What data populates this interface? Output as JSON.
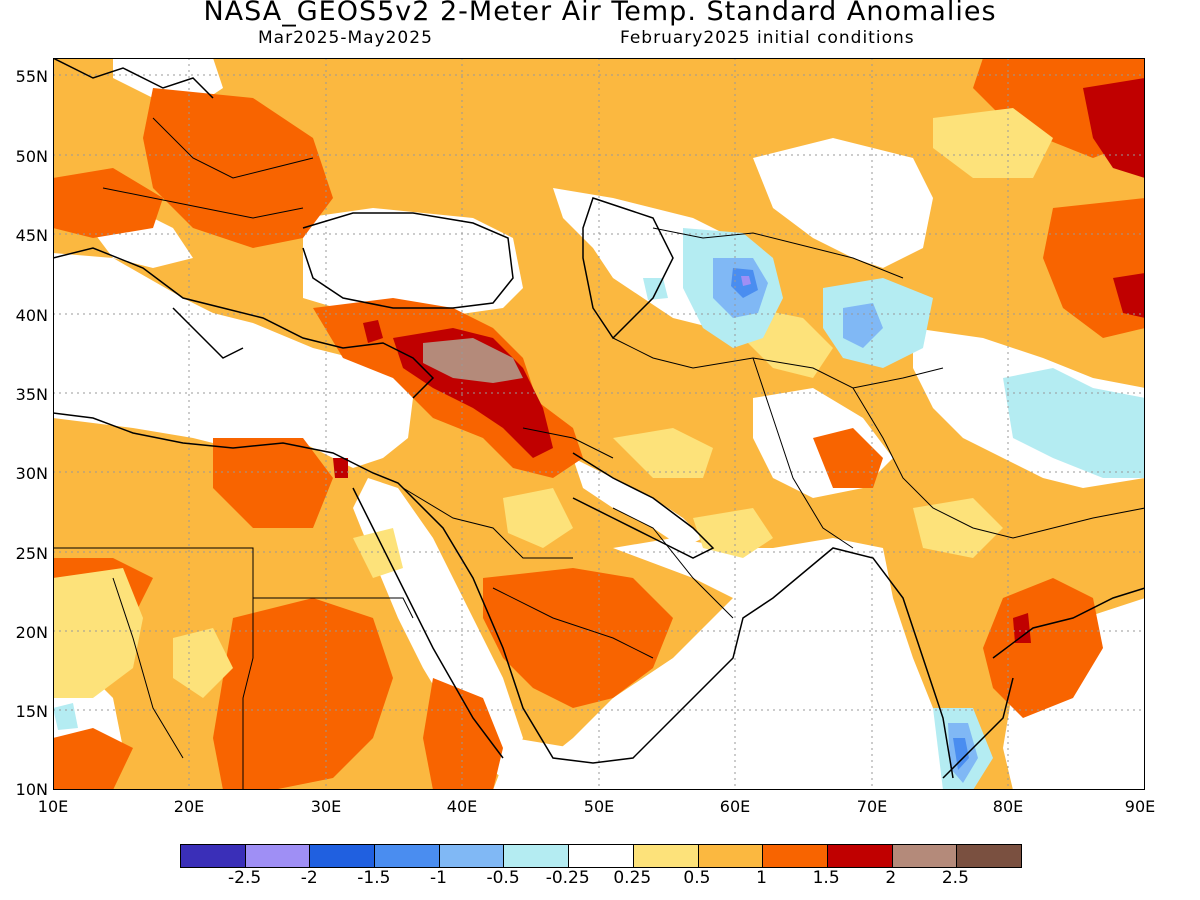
{
  "title": "NASA_GEOS5v2 2-Meter Air Temp. Standard Anomalies",
  "subtitle_left": "Mar2025-May2025",
  "subtitle_right": "February2025 initial conditions",
  "y_axis": [
    "55N",
    "50N",
    "45N",
    "40N",
    "35N",
    "30N",
    "25N",
    "20N",
    "15N",
    "10N"
  ],
  "x_axis": [
    "10E",
    "20E",
    "30E",
    "40E",
    "50E",
    "60E",
    "70E",
    "80E",
    "90E"
  ],
  "colorbar": {
    "colors": [
      "#3a2fb8",
      "#9f8ff5",
      "#2060e0",
      "#4a8df0",
      "#80b8f5",
      "#b4ecf2",
      "#ffffff",
      "#fde27a",
      "#fbb840",
      "#f86400",
      "#c00000",
      "#b48a7a",
      "#7a5040"
    ],
    "labels": [
      "-2.5",
      "-2",
      "-1.5",
      "-1",
      "-0.5",
      "-0.25",
      "0.25",
      "0.5",
      "1",
      "1.5",
      "2",
      "2.5"
    ]
  },
  "palette": {
    "light_yellow": "#fde27a",
    "orange_light": "#fbb840",
    "orange_dark": "#f86400",
    "red": "#c00000",
    "brown": "#b48a7a",
    "cyan": "#b4ecf2",
    "blue_light": "#80b8f5",
    "blue": "#4a8df0",
    "purple": "#9f8ff5"
  }
}
